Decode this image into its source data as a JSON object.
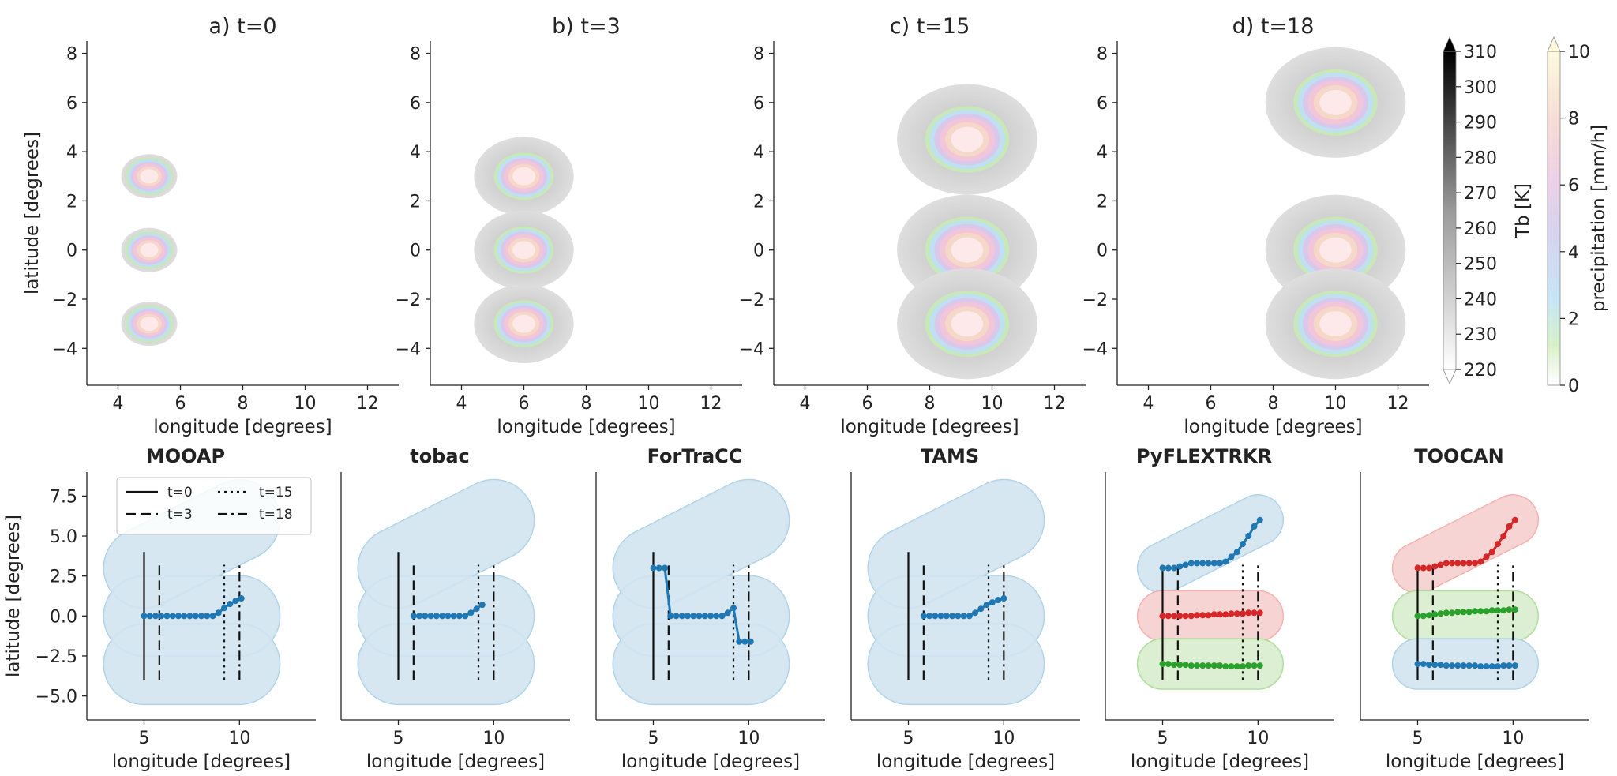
{
  "chart_data": [
    {
      "type": "heatmap",
      "title": "a) t=0",
      "xlabel": "longitude [degrees]",
      "ylabel": "latitude [degrees]",
      "xlim": [
        3,
        13
      ],
      "ylim": [
        -5.5,
        8.5
      ],
      "xticks": [
        4,
        6,
        8,
        10,
        12
      ],
      "yticks": [
        -4,
        -2,
        0,
        2,
        4,
        6,
        8
      ],
      "cells": [
        {
          "lon": 5,
          "lat": 3,
          "radius": 0.9
        },
        {
          "lon": 5,
          "lat": 0,
          "radius": 0.9
        },
        {
          "lon": 5,
          "lat": -3,
          "radius": 0.9
        }
      ]
    },
    {
      "type": "heatmap",
      "title": "b) t=3",
      "xlabel": "longitude [degrees]",
      "xlim": [
        3,
        13
      ],
      "ylim": [
        -5.5,
        8.5
      ],
      "xticks": [
        4,
        6,
        8,
        10,
        12
      ],
      "yticks": [
        -4,
        -2,
        0,
        2,
        4,
        6,
        8
      ],
      "cells": [
        {
          "lon": 6,
          "lat": 3,
          "radius": 1.6
        },
        {
          "lon": 6,
          "lat": 0,
          "radius": 1.6
        },
        {
          "lon": 6,
          "lat": -3,
          "radius": 1.6
        }
      ]
    },
    {
      "type": "heatmap",
      "title": "c) t=15",
      "xlabel": "longitude [degrees]",
      "xlim": [
        3,
        13
      ],
      "ylim": [
        -5.5,
        8.5
      ],
      "xticks": [
        4,
        6,
        8,
        10,
        12
      ],
      "yticks": [
        -4,
        -2,
        0,
        2,
        4,
        6,
        8
      ],
      "cells": [
        {
          "lon": 9.2,
          "lat": 4.5,
          "radius": 2.25
        },
        {
          "lon": 9.2,
          "lat": 0,
          "radius": 2.25
        },
        {
          "lon": 9.2,
          "lat": -3,
          "radius": 2.25
        }
      ]
    },
    {
      "type": "heatmap",
      "title": "d) t=18",
      "xlabel": "longitude [degrees]",
      "xlim": [
        3,
        13
      ],
      "ylim": [
        -5.5,
        8.5
      ],
      "xticks": [
        4,
        6,
        8,
        10,
        12
      ],
      "yticks": [
        -4,
        -2,
        0,
        2,
        4,
        6,
        8
      ],
      "cells": [
        {
          "lon": 10,
          "lat": 6,
          "radius": 2.25
        },
        {
          "lon": 10,
          "lat": 0,
          "radius": 2.25
        },
        {
          "lon": 10,
          "lat": -3,
          "radius": 2.25
        }
      ]
    }
  ],
  "colorbars": [
    {
      "label": "Tb [K]",
      "ticks": [
        220,
        230,
        240,
        250,
        260,
        270,
        280,
        290,
        300,
        310
      ],
      "range": [
        220,
        310
      ]
    },
    {
      "label": "precipitation [mm/h]",
      "ticks": [
        0,
        2,
        4,
        6,
        8,
        10
      ],
      "range": [
        0,
        10
      ]
    }
  ],
  "tracks": [
    {
      "title": "MOOAP",
      "ylabel": "latitude [degrees]",
      "xlabel": "longitude [degrees]",
      "xlim": [
        2,
        14
      ],
      "ylim": [
        -6.5,
        9
      ],
      "xticks": [
        5,
        10
      ],
      "yticks": [
        -5.0,
        -2.5,
        0.0,
        2.5,
        5.0,
        7.5
      ],
      "ytick_labels": [
        "−5.0",
        "−2.5",
        "0.0",
        "2.5",
        "5.0",
        "7.5"
      ],
      "legend": [
        "t=0",
        "t=3",
        "t=15",
        "t=18"
      ],
      "time_lines": [
        {
          "x": 5,
          "style": "solid",
          "y": [
            -4,
            4
          ]
        },
        {
          "x": 5.8,
          "style": "dashed",
          "y": [
            -4,
            3.2
          ]
        },
        {
          "x": 9.2,
          "style": "dotted",
          "y": [
            -4,
            3.2
          ]
        },
        {
          "x": 10,
          "style": "dashdot",
          "y": [
            -4,
            3.2
          ]
        }
      ],
      "objects": [
        {
          "color": "#a6cee3",
          "fill": "#d6e6f2",
          "lobes": [
            {
              "x1": 5,
              "y1": 3,
              "x2": 10,
              "y2": 6,
              "r": 2.1
            },
            {
              "x1": 5,
              "y1": 0,
              "x2": 10,
              "y2": 0,
              "r": 2.1
            },
            {
              "x1": 5,
              "y1": -3,
              "x2": 10,
              "y2": -3,
              "r": 2.1
            }
          ]
        }
      ],
      "series": [
        {
          "color": "#1f77b4",
          "x": [
            5,
            5.3,
            5.6,
            5.9,
            6.2,
            6.5,
            6.8,
            7.1,
            7.4,
            7.7,
            8.0,
            8.3,
            8.6,
            8.9,
            9.2,
            9.5,
            9.8,
            10.1
          ],
          "y": [
            0,
            0,
            0,
            0,
            0,
            0,
            0,
            0,
            0,
            0,
            0,
            0,
            0,
            0.2,
            0.5,
            0.75,
            0.95,
            1.1
          ]
        }
      ]
    },
    {
      "title": "tobac",
      "xlabel": "longitude [degrees]",
      "xlim": [
        2,
        14
      ],
      "ylim": [
        -6.5,
        9
      ],
      "xticks": [
        5,
        10
      ],
      "time_lines": [
        {
          "x": 5,
          "style": "solid",
          "y": [
            -4,
            4
          ]
        },
        {
          "x": 5.8,
          "style": "dashed",
          "y": [
            -4,
            3.2
          ]
        },
        {
          "x": 9.2,
          "style": "dotted",
          "y": [
            -4,
            3.2
          ]
        },
        {
          "x": 10,
          "style": "dashdot",
          "y": [
            -4,
            3.2
          ]
        }
      ],
      "objects": [
        {
          "color": "#a6cee3",
          "fill": "#d6e6f2",
          "lobes": [
            {
              "x1": 5,
              "y1": 3,
              "x2": 10,
              "y2": 6,
              "r": 2.1
            },
            {
              "x1": 5,
              "y1": 0,
              "x2": 10,
              "y2": 0,
              "r": 2.1
            },
            {
              "x1": 5,
              "y1": -3,
              "x2": 10,
              "y2": -3,
              "r": 2.1
            }
          ]
        }
      ],
      "series": [
        {
          "color": "#1f77b4",
          "x": [
            5.8,
            6.1,
            6.4,
            6.7,
            7.0,
            7.3,
            7.6,
            7.9,
            8.2,
            8.5,
            8.8,
            9.1,
            9.4
          ],
          "y": [
            0,
            0,
            0,
            0,
            0,
            0,
            0,
            0,
            0,
            0,
            0.2,
            0.45,
            0.7
          ]
        }
      ]
    },
    {
      "title": "ForTraCC",
      "xlabel": "longitude [degrees]",
      "xlim": [
        2,
        14
      ],
      "ylim": [
        -6.5,
        9
      ],
      "xticks": [
        5,
        10
      ],
      "time_lines": [
        {
          "x": 5,
          "style": "solid",
          "y": [
            -4,
            4
          ]
        },
        {
          "x": 5.8,
          "style": "dashed",
          "y": [
            -4,
            3.2
          ]
        },
        {
          "x": 9.2,
          "style": "dotted",
          "y": [
            -4,
            3.2
          ]
        },
        {
          "x": 10,
          "style": "dashdot",
          "y": [
            -4,
            3.2
          ]
        }
      ],
      "objects": [
        {
          "color": "#a6cee3",
          "fill": "#d6e6f2",
          "lobes": [
            {
              "x1": 5,
              "y1": 3,
              "x2": 10,
              "y2": 6,
              "r": 2.1
            },
            {
              "x1": 5,
              "y1": 0,
              "x2": 10,
              "y2": 0,
              "r": 2.1
            },
            {
              "x1": 5,
              "y1": -3,
              "x2": 10,
              "y2": -3,
              "r": 2.1
            }
          ]
        }
      ],
      "series": [
        {
          "color": "#1f77b4",
          "x": [
            5,
            5.3,
            5.6,
            5.9,
            6.2,
            6.5,
            6.8,
            7.1,
            7.4,
            7.7,
            8.0,
            8.3,
            8.6,
            8.9,
            9.2,
            9.5,
            9.8,
            10.1
          ],
          "y": [
            3,
            3,
            3,
            0,
            0,
            0,
            0,
            0,
            0,
            0,
            0,
            0,
            0,
            0.2,
            0.5,
            -1.6,
            -1.6,
            -1.6
          ]
        }
      ]
    },
    {
      "title": "TAMS",
      "xlabel": "longitude [degrees]",
      "xlim": [
        2,
        14
      ],
      "ylim": [
        -6.5,
        9
      ],
      "xticks": [
        5,
        10
      ],
      "time_lines": [
        {
          "x": 5,
          "style": "solid",
          "y": [
            -4,
            4
          ]
        },
        {
          "x": 5.8,
          "style": "dashed",
          "y": [
            -4,
            3.2
          ]
        },
        {
          "x": 9.2,
          "style": "dotted",
          "y": [
            -4,
            3.2
          ]
        },
        {
          "x": 10,
          "style": "dashdot",
          "y": [
            -4,
            3.2
          ]
        }
      ],
      "objects": [
        {
          "color": "#a6cee3",
          "fill": "#d6e6f2",
          "lobes": [
            {
              "x1": 5,
              "y1": 3,
              "x2": 10,
              "y2": 6,
              "r": 2.1
            },
            {
              "x1": 5,
              "y1": 0,
              "x2": 10,
              "y2": 0,
              "r": 2.1
            },
            {
              "x1": 5,
              "y1": -3,
              "x2": 10,
              "y2": -3,
              "r": 2.1
            }
          ]
        }
      ],
      "series": [
        {
          "color": "#1f77b4",
          "x": [
            5.8,
            6.1,
            6.4,
            6.7,
            7.0,
            7.3,
            7.6,
            7.9,
            8.2,
            8.5,
            8.8,
            9.1,
            9.4,
            9.7,
            10.0
          ],
          "y": [
            0,
            0,
            0,
            0,
            0,
            0,
            0,
            0,
            0,
            0.2,
            0.45,
            0.7,
            0.85,
            1.0,
            1.1
          ]
        }
      ]
    },
    {
      "title": "PyFLEXTRKR",
      "xlabel": "longitude [degrees]",
      "xlim": [
        2,
        14
      ],
      "ylim": [
        -6.5,
        9
      ],
      "xticks": [
        5,
        10
      ],
      "time_lines": [
        {
          "x": 5,
          "style": "solid",
          "y": [
            -4,
            3.2
          ]
        },
        {
          "x": 5.8,
          "style": "dashed",
          "y": [
            -4,
            3.2
          ]
        },
        {
          "x": 9.2,
          "style": "dotted",
          "y": [
            -4,
            3.2
          ]
        },
        {
          "x": 10,
          "style": "dashdot",
          "y": [
            -4,
            3.2
          ]
        }
      ],
      "objects": [
        {
          "color": "#a6cee3",
          "fill": "#d6e6f2",
          "lobes": [
            {
              "x1": 5,
              "y1": 3,
              "x2": 10,
              "y2": 6,
              "r": 1.3
            }
          ]
        },
        {
          "color": "#f4a6a6",
          "fill": "#f7d4d4",
          "lobes": [
            {
              "x1": 5,
              "y1": 0,
              "x2": 10,
              "y2": 0,
              "r": 1.3
            }
          ]
        },
        {
          "color": "#a3d98e",
          "fill": "#dcefd2",
          "lobes": [
            {
              "x1": 5,
              "y1": -3,
              "x2": 10,
              "y2": -3,
              "r": 1.3
            }
          ]
        }
      ],
      "series": [
        {
          "color": "#1f77b4",
          "x": [
            5,
            5.3,
            5.6,
            5.9,
            6.2,
            6.5,
            6.8,
            7.1,
            7.4,
            7.7,
            8.0,
            8.3,
            8.6,
            8.9,
            9.2,
            9.5,
            9.8,
            10.1
          ],
          "y": [
            3,
            3,
            3,
            3.1,
            3.2,
            3.3,
            3.3,
            3.3,
            3.3,
            3.3,
            3.3,
            3.4,
            3.7,
            4.0,
            4.5,
            5.0,
            5.6,
            6.0
          ]
        },
        {
          "color": "#d62728",
          "x": [
            5,
            5.3,
            5.6,
            5.9,
            6.2,
            6.5,
            6.8,
            7.1,
            7.4,
            7.7,
            8.0,
            8.3,
            8.6,
            8.9,
            9.2,
            9.5,
            9.8,
            10.1
          ],
          "y": [
            0,
            0,
            0,
            0,
            0,
            0,
            0.05,
            0.05,
            0.05,
            0.1,
            0.1,
            0.1,
            0.15,
            0.15,
            0.15,
            0.2,
            0.2,
            0.2
          ]
        },
        {
          "color": "#2ca02c",
          "x": [
            5,
            5.3,
            5.6,
            5.9,
            6.2,
            6.5,
            6.8,
            7.1,
            7.4,
            7.7,
            8.0,
            8.3,
            8.6,
            8.9,
            9.2,
            9.5,
            9.8,
            10.1
          ],
          "y": [
            -3,
            -3,
            -3.05,
            -3.05,
            -3.05,
            -3.1,
            -3.1,
            -3.1,
            -3.1,
            -3.1,
            -3.1,
            -3.15,
            -3.15,
            -3.15,
            -3.15,
            -3.1,
            -3.1,
            -3.1
          ]
        }
      ]
    },
    {
      "title": "TOOCAN",
      "xlabel": "longitude [degrees]",
      "xlim": [
        2,
        14
      ],
      "ylim": [
        -6.5,
        9
      ],
      "xticks": [
        5,
        10
      ],
      "time_lines": [
        {
          "x": 5,
          "style": "solid",
          "y": [
            -4,
            3.2
          ]
        },
        {
          "x": 5.8,
          "style": "dashed",
          "y": [
            -4,
            3.2
          ]
        },
        {
          "x": 9.2,
          "style": "dotted",
          "y": [
            -4,
            3.2
          ]
        },
        {
          "x": 10,
          "style": "dashdot",
          "y": [
            -4,
            3.2
          ]
        }
      ],
      "objects": [
        {
          "color": "#f4a6a6",
          "fill": "#f7d4d4",
          "lobes": [
            {
              "x1": 5,
              "y1": 3,
              "x2": 10,
              "y2": 6,
              "r": 1.3
            }
          ]
        },
        {
          "color": "#a3d98e",
          "fill": "#dcefd2",
          "lobes": [
            {
              "x1": 5,
              "y1": 0,
              "x2": 10,
              "y2": 0,
              "r": 1.3
            }
          ]
        },
        {
          "color": "#a6cee3",
          "fill": "#d6e6f2",
          "lobes": [
            {
              "x1": 5,
              "y1": -3,
              "x2": 10,
              "y2": -3,
              "r": 1.3
            }
          ]
        }
      ],
      "series": [
        {
          "color": "#d62728",
          "x": [
            5,
            5.3,
            5.6,
            5.9,
            6.2,
            6.5,
            6.8,
            7.1,
            7.4,
            7.7,
            8.0,
            8.3,
            8.6,
            8.9,
            9.2,
            9.5,
            9.8,
            10.1
          ],
          "y": [
            3,
            3,
            3,
            3.1,
            3.2,
            3.3,
            3.3,
            3.3,
            3.3,
            3.3,
            3.3,
            3.4,
            3.7,
            4.0,
            4.5,
            5.0,
            5.6,
            6.0
          ]
        },
        {
          "color": "#2ca02c",
          "x": [
            5,
            5.3,
            5.6,
            5.9,
            6.2,
            6.5,
            6.8,
            7.1,
            7.4,
            7.7,
            8.0,
            8.3,
            8.6,
            8.9,
            9.2,
            9.5,
            9.8,
            10.1
          ],
          "y": [
            0,
            0,
            0.05,
            0.1,
            0.15,
            0.2,
            0.2,
            0.25,
            0.25,
            0.25,
            0.3,
            0.3,
            0.3,
            0.35,
            0.35,
            0.35,
            0.4,
            0.4
          ]
        },
        {
          "color": "#1f77b4",
          "x": [
            5,
            5.3,
            5.6,
            5.9,
            6.2,
            6.5,
            6.8,
            7.1,
            7.4,
            7.7,
            8.0,
            8.3,
            8.6,
            8.9,
            9.2,
            9.5,
            9.8,
            10.1
          ],
          "y": [
            -3,
            -3,
            -3.05,
            -3.05,
            -3.05,
            -3.1,
            -3.1,
            -3.1,
            -3.1,
            -3.1,
            -3.1,
            -3.15,
            -3.15,
            -3.15,
            -3.15,
            -3.1,
            -3.1,
            -3.1
          ]
        }
      ]
    }
  ]
}
